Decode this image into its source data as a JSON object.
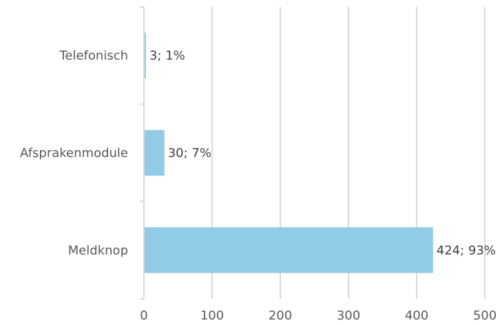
{
  "chart_data": {
    "type": "bar",
    "orientation": "horizontal",
    "categories": [
      "Telefonisch",
      "Afsprakenmodule",
      "Meldknop"
    ],
    "values": [
      3,
      30,
      424
    ],
    "data_labels": [
      "3; 1%",
      "30; 7%",
      "424; 93%"
    ],
    "xlim": [
      0,
      500
    ],
    "x_ticks": [
      0,
      100,
      200,
      300,
      400,
      500
    ],
    "grid": true,
    "bar_color": "#92cbe6",
    "grid_color": "#d9d9d9",
    "title": "",
    "xlabel": "",
    "ylabel": ""
  }
}
